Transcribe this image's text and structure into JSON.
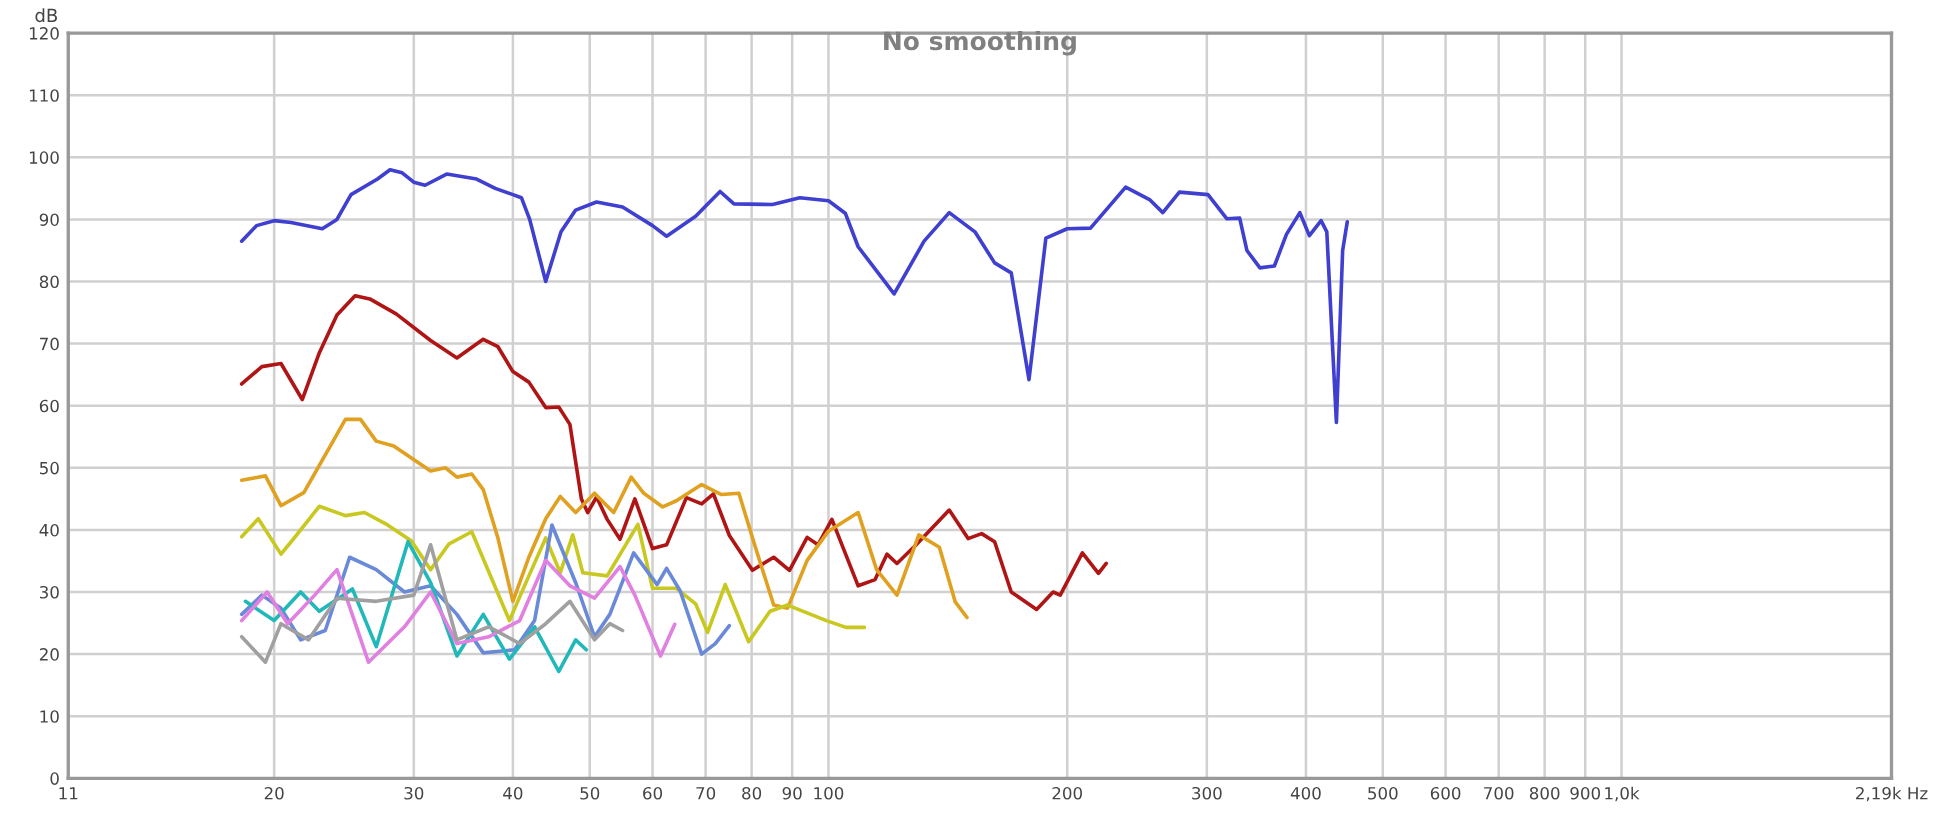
{
  "chart_data": {
    "type": "line",
    "title": "No smoothing",
    "ylabel": "dB",
    "log": "x",
    "grid": true,
    "legend": false,
    "xlim": [
      11,
      2190
    ],
    "ylim": [
      0,
      120
    ],
    "xticks": [
      11,
      20,
      30,
      40,
      50,
      60,
      70,
      80,
      90,
      100,
      200,
      300,
      400,
      500,
      600,
      700,
      800,
      900,
      {
        "value": 1000,
        "label": "1,0k"
      },
      {
        "value": 2190,
        "label": "2,19k Hz"
      }
    ],
    "yticks": [
      0,
      10,
      20,
      30,
      40,
      50,
      60,
      70,
      80,
      90,
      100,
      110,
      120
    ],
    "series": [
      {
        "color": "#3f3fd0",
        "x": [
          18.2,
          19,
          20,
          21,
          23,
          24,
          25,
          27,
          28,
          29,
          30,
          31,
          33,
          36,
          38,
          40,
          41,
          42,
          44,
          46,
          48,
          51,
          55,
          60,
          62.5,
          68,
          73,
          76,
          85,
          92,
          100,
          105,
          109,
          121,
          132,
          142,
          153,
          162,
          170,
          179,
          188,
          200,
          214,
          237,
          254,
          264,
          277,
          301,
          318,
          330,
          337,
          350,
          365,
          378,
          393,
          404,
          418,
          425,
          437,
          445,
          451
        ],
        "values": [
          86.5,
          89,
          89.8,
          89.5,
          88.5,
          90,
          94,
          96.5,
          98,
          97.5,
          96,
          95.5,
          97.3,
          96.5,
          95,
          94,
          93.5,
          90,
          80,
          88,
          91.5,
          92.8,
          92,
          89,
          87.3,
          90.5,
          94.5,
          92.5,
          92.4,
          93.5,
          93,
          91,
          85.6,
          78,
          86.5,
          91.1,
          88,
          83,
          81.4,
          64.2,
          87,
          88.5,
          88.6,
          95.2,
          93.2,
          91.1,
          94.4,
          94,
          90.1,
          90.2,
          85,
          82.2,
          82.5,
          87.6,
          91.1,
          87.4,
          89.8,
          88,
          57.3,
          85,
          89.6
        ]
      },
      {
        "color": "#b01515",
        "x": [
          18.2,
          19.3,
          20.4,
          21.7,
          22.8,
          24,
          25.3,
          26.4,
          28.5,
          31.5,
          34,
          36.7,
          38.3,
          40,
          41.9,
          44,
          45.7,
          47.2,
          48.8,
          49.7,
          51,
          52.6,
          54.6,
          57,
          60,
          62.5,
          66.2,
          69.2,
          71.6,
          75,
          80.2,
          85.3,
          89.3,
          94,
          97,
          101,
          109,
          114.5,
          118.5,
          122,
          129,
          142,
          150,
          156,
          162,
          170,
          183,
          192,
          196,
          209,
          219,
          224
        ],
        "values": [
          63.5,
          66.3,
          66.8,
          61,
          68.5,
          74.6,
          77.7,
          77.2,
          74.8,
          70.5,
          67.7,
          70.7,
          69.5,
          65.5,
          63.8,
          59.7,
          59.8,
          57,
          45,
          42.8,
          45.3,
          41.7,
          38.5,
          45,
          37,
          37.6,
          45.2,
          44.2,
          45.8,
          39.1,
          33.5,
          35.6,
          33.5,
          38.8,
          37.6,
          41.7,
          31,
          32,
          36.1,
          34.6,
          37.6,
          43.2,
          38.6,
          39.4,
          38.1,
          30,
          27.2,
          30,
          29.5,
          36.3,
          33,
          34.6
        ]
      },
      {
        "color": "#e0a020",
        "x": [
          18.2,
          19.5,
          20.4,
          21.8,
          23.2,
          24.6,
          25.7,
          26.9,
          28.3,
          31.5,
          32.9,
          34,
          35.5,
          36.7,
          38.3,
          40,
          41.9,
          44,
          45.9,
          48,
          50.7,
          53.6,
          56.4,
          58.5,
          61.8,
          64.3,
          69.2,
          73.3,
          77.1,
          80.7,
          85.3,
          88.8,
          94,
          100,
          109,
          115,
          122,
          130,
          138,
          144.5,
          149.5
        ],
        "values": [
          48,
          48.7,
          43.9,
          46,
          52.1,
          57.8,
          57.8,
          54.3,
          53.5,
          49.5,
          50,
          48.5,
          49,
          46.5,
          38.7,
          28.5,
          35.6,
          41.8,
          45.4,
          42.8,
          45.9,
          42.8,
          48.5,
          45.9,
          43.7,
          44.7,
          47.3,
          45.7,
          45.9,
          37.6,
          27.9,
          27.4,
          35.1,
          39.8,
          42.8,
          33.6,
          29.5,
          39.2,
          37.2,
          28.4,
          25.9
        ]
      },
      {
        "color": "#c8c820",
        "x": [
          18.2,
          19.1,
          20.4,
          21.2,
          22.8,
          24.6,
          26,
          27.8,
          29.8,
          31.5,
          33.2,
          35.5,
          39.6,
          41.9,
          44,
          45.9,
          47.6,
          49,
          52.6,
          57.5,
          60,
          64.3,
          68,
          70.4,
          74.1,
          79.3,
          84.4,
          88.8,
          99.4,
          105.2,
          111
        ],
        "values": [
          38.9,
          41.8,
          36.1,
          38.7,
          43.8,
          42.3,
          42.8,
          40.8,
          38.2,
          33.6,
          37.7,
          39.7,
          25.4,
          32.6,
          38.7,
          33.1,
          39.2,
          33.1,
          32.6,
          40.9,
          30.6,
          30.6,
          28.1,
          23.5,
          31.2,
          22,
          26.9,
          27.9,
          25.4,
          24.3,
          24.3
        ]
      },
      {
        "color": "#6a8ad8",
        "x": [
          18.2,
          19.3,
          20.4,
          21.6,
          23.2,
          24.9,
          26.9,
          29.2,
          31.5,
          34,
          36.7,
          40.2,
          42.6,
          44.8,
          48,
          50.7,
          53,
          56.8,
          60.8,
          62.5,
          65,
          69.2,
          72,
          75
        ],
        "values": [
          26.4,
          29.5,
          27.4,
          22.3,
          23.8,
          35.6,
          33.6,
          30,
          31,
          26.4,
          20.2,
          20.7,
          25.4,
          40.8,
          31.5,
          22.8,
          26.4,
          36.3,
          31.2,
          33.8,
          30.2,
          20,
          21.7,
          24.6
        ]
      },
      {
        "color": "#20b8b8",
        "x": [
          18.4,
          20,
          21.6,
          22.8,
          25.1,
          26.9,
          29.5,
          31.5,
          34,
          36.7,
          39.6,
          42.6,
          45.7,
          48,
          49.5
        ],
        "values": [
          28.5,
          25.4,
          30,
          26.9,
          30.5,
          21.2,
          38.1,
          31.5,
          19.7,
          26.4,
          19.2,
          24.4,
          17.2,
          22.3,
          20.7
        ]
      },
      {
        "color": "#e080e0",
        "x": [
          18.2,
          19.6,
          20.8,
          22.5,
          24,
          26.3,
          29.2,
          31.5,
          34,
          37.3,
          40.8,
          44,
          47.2,
          50.7,
          54.6,
          57,
          61.4,
          64
        ],
        "values": [
          25.4,
          30,
          24.9,
          29.5,
          33.6,
          18.7,
          24.4,
          30,
          21.7,
          22.8,
          25.4,
          35.1,
          31,
          29,
          34.1,
          29.5,
          19.7,
          24.8
        ]
      },
      {
        "color": "#a0a0a0",
        "x": [
          18.2,
          19.5,
          20.4,
          22.1,
          24,
          26.9,
          30,
          31.5,
          34,
          37.3,
          40.8,
          44,
          47.2,
          50.7,
          53,
          55
        ],
        "values": [
          22.8,
          18.7,
          24.9,
          22.3,
          29,
          28.5,
          29.5,
          37.6,
          22.3,
          24.4,
          21.7,
          24.9,
          28.5,
          22.3,
          24.9,
          23.8
        ]
      }
    ]
  }
}
